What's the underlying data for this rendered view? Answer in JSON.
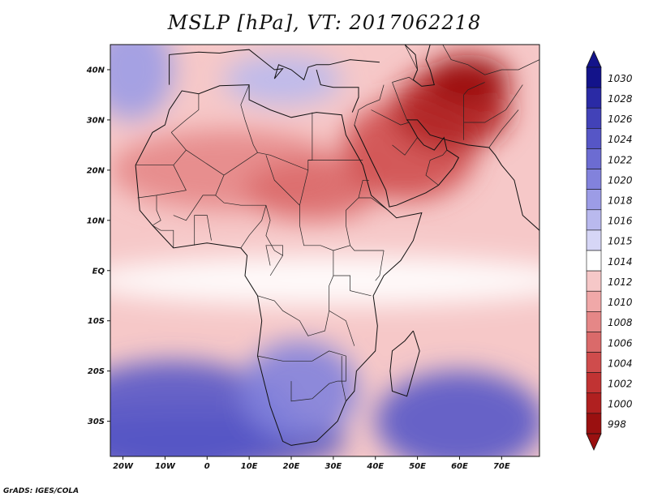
{
  "title": "MSLP [hPa], VT: 2017062218",
  "credit": "GrADS: IGES/COLA",
  "map": {
    "lon_range": [
      -23,
      79
    ],
    "lat_range": [
      -37,
      45
    ],
    "x_ticks": [
      {
        "lon": -20,
        "label": "20W"
      },
      {
        "lon": -10,
        "label": "10W"
      },
      {
        "lon": 0,
        "label": "0"
      },
      {
        "lon": 10,
        "label": "10E"
      },
      {
        "lon": 20,
        "label": "20E"
      },
      {
        "lon": 30,
        "label": "30E"
      },
      {
        "lon": 40,
        "label": "40E"
      },
      {
        "lon": 50,
        "label": "50E"
      },
      {
        "lon": 60,
        "label": "60E"
      },
      {
        "lon": 70,
        "label": "70E"
      }
    ],
    "y_ticks": [
      {
        "lat": 40,
        "label": "40N"
      },
      {
        "lat": 30,
        "label": "30N"
      },
      {
        "lat": 20,
        "label": "20N"
      },
      {
        "lat": 10,
        "label": "10N"
      },
      {
        "lat": 0,
        "label": "EQ"
      },
      {
        "lat": -10,
        "label": "10S"
      },
      {
        "lat": -20,
        "label": "20S"
      },
      {
        "lat": -30,
        "label": "30S"
      }
    ],
    "field_regions": [
      {
        "name": "southern-ocean-high",
        "value": 1026,
        "center": [
          -5,
          -34
        ],
        "radius": [
          38,
          6
        ]
      },
      {
        "name": "south-atlantic-high",
        "value": 1024,
        "center": [
          -8,
          -30
        ],
        "radius": [
          28,
          12
        ]
      },
      {
        "name": "south-indian-high",
        "value": 1024,
        "center": [
          60,
          -30
        ],
        "radius": [
          20,
          10
        ]
      },
      {
        "name": "southern-africa-high",
        "value": 1020,
        "center": [
          22,
          -24
        ],
        "radius": [
          14,
          10
        ]
      },
      {
        "name": "azores-ridge",
        "value": 1018,
        "center": [
          -18,
          40
        ],
        "radius": [
          10,
          10
        ]
      },
      {
        "name": "mediterranean-ridge",
        "value": 1016,
        "center": [
          18,
          38
        ],
        "radius": [
          14,
          5
        ]
      },
      {
        "name": "equatorial-band",
        "value": 1013,
        "center": [
          30,
          -2
        ],
        "radius": [
          60,
          5
        ]
      },
      {
        "name": "sahara-low",
        "value": 1008,
        "center": [
          5,
          20
        ],
        "radius": [
          28,
          8
        ]
      },
      {
        "name": "sudan-low",
        "value": 1006,
        "center": [
          25,
          16
        ],
        "radius": [
          16,
          6
        ]
      },
      {
        "name": "arabian-low",
        "value": 1004,
        "center": [
          48,
          24
        ],
        "radius": [
          16,
          10
        ]
      },
      {
        "name": "persian-gulf-low",
        "value": 1000,
        "center": [
          58,
          32
        ],
        "radius": [
          14,
          8
        ]
      },
      {
        "name": "central-asia-low",
        "value": 998,
        "center": [
          62,
          38
        ],
        "radius": [
          10,
          5
        ]
      }
    ],
    "coastlines": {
      "africa": [
        [
          -17,
          21
        ],
        [
          -16,
          12
        ],
        [
          -13,
          9
        ],
        [
          -8,
          4.5
        ],
        [
          0,
          5.5
        ],
        [
          8,
          4.5
        ],
        [
          9.5,
          3
        ],
        [
          9,
          -1
        ],
        [
          12,
          -5
        ],
        [
          13,
          -10
        ],
        [
          12,
          -17
        ],
        [
          15,
          -27
        ],
        [
          18,
          -34
        ],
        [
          20,
          -34.8
        ],
        [
          26,
          -34
        ],
        [
          31,
          -30
        ],
        [
          33,
          -26
        ],
        [
          35,
          -24
        ],
        [
          35.5,
          -20
        ],
        [
          40,
          -16
        ],
        [
          40.5,
          -11
        ],
        [
          39.5,
          -5
        ],
        [
          42,
          -1
        ],
        [
          46,
          2
        ],
        [
          49,
          6
        ],
        [
          51,
          11.5
        ],
        [
          45,
          10.5
        ],
        [
          43,
          12
        ],
        [
          39,
          15
        ],
        [
          37,
          21
        ],
        [
          33,
          27
        ],
        [
          32,
          31
        ],
        [
          26,
          31.5
        ],
        [
          20,
          30.5
        ],
        [
          15,
          32
        ],
        [
          10,
          34
        ],
        [
          10,
          37
        ],
        [
          3,
          36.8
        ],
        [
          -2,
          35.2
        ],
        [
          -6,
          35.8
        ],
        [
          -9,
          32
        ],
        [
          -10,
          29
        ],
        [
          -13,
          27.5
        ],
        [
          -17,
          21
        ]
      ],
      "madagascar": [
        [
          49,
          -12
        ],
        [
          50.5,
          -16
        ],
        [
          47.5,
          -25
        ],
        [
          44,
          -24
        ],
        [
          43.5,
          -20
        ],
        [
          44,
          -16
        ],
        [
          47,
          -14
        ],
        [
          49,
          -12
        ]
      ],
      "arabia": [
        [
          35,
          29
        ],
        [
          39,
          22
        ],
        [
          42.5,
          16
        ],
        [
          43.3,
          12.7
        ],
        [
          45,
          13
        ],
        [
          52,
          15.5
        ],
        [
          55,
          17
        ],
        [
          58.5,
          20.5
        ],
        [
          59.8,
          22.5
        ],
        [
          57,
          24
        ],
        [
          56.3,
          26.5
        ],
        [
          54,
          24
        ],
        [
          51.5,
          25
        ],
        [
          50,
          26.5
        ],
        [
          48,
          29.5
        ],
        [
          47.5,
          30
        ],
        [
          50,
          30
        ],
        [
          53,
          27
        ],
        [
          57,
          26
        ],
        [
          62,
          25
        ],
        [
          67,
          24.5
        ],
        [
          68.5,
          23
        ],
        [
          70,
          21
        ],
        [
          73,
          18
        ],
        [
          75,
          11
        ],
        [
          79,
          8
        ]
      ],
      "europe": [
        [
          -9,
          37
        ],
        [
          -9,
          43
        ],
        [
          -2,
          43.5
        ],
        [
          3,
          43.3
        ],
        [
          7,
          43.8
        ],
        [
          10,
          44
        ],
        [
          13,
          42
        ],
        [
          16,
          40
        ],
        [
          18,
          40.2
        ],
        [
          16,
          38.2
        ],
        [
          17,
          41
        ],
        [
          20,
          40
        ],
        [
          23,
          38
        ],
        [
          24,
          40.5
        ],
        [
          26,
          41
        ],
        [
          29,
          41
        ],
        [
          34,
          42
        ],
        [
          41,
          41.5
        ]
      ],
      "turkey_levant": [
        [
          26,
          40
        ],
        [
          27,
          37
        ],
        [
          30,
          36.5
        ],
        [
          36,
          36.5
        ],
        [
          36,
          34.5
        ],
        [
          35,
          32.5
        ],
        [
          34.5,
          31.5
        ]
      ],
      "caspian": [
        [
          47,
          45
        ],
        [
          49.5,
          43
        ],
        [
          50,
          40
        ],
        [
          49,
          38
        ],
        [
          51,
          36.7
        ],
        [
          54,
          37
        ],
        [
          53,
          40
        ],
        [
          52,
          42
        ],
        [
          53,
          45
        ]
      ]
    },
    "borders": [
      [
        [
          -17,
          21
        ],
        [
          -8,
          21
        ],
        [
          -5,
          24
        ],
        [
          -8.5,
          27.5
        ]
      ],
      [
        [
          -8,
          21
        ],
        [
          -5,
          16
        ],
        [
          -12,
          15
        ],
        [
          -16.5,
          14.5
        ]
      ],
      [
        [
          -5,
          24
        ],
        [
          4,
          19
        ],
        [
          12,
          23.5
        ],
        [
          15,
          23
        ],
        [
          24,
          20
        ],
        [
          24,
          22
        ],
        [
          25,
          22
        ],
        [
          25,
          31.5
        ]
      ],
      [
        [
          4,
          19
        ],
        [
          2,
          15
        ],
        [
          -1,
          15
        ],
        [
          -5,
          10
        ],
        [
          -8,
          11
        ]
      ],
      [
        [
          2,
          15
        ],
        [
          4,
          13.5
        ],
        [
          8,
          13
        ],
        [
          14,
          13
        ]
      ],
      [
        [
          14,
          13
        ],
        [
          15,
          10
        ],
        [
          14,
          7
        ],
        [
          16,
          4
        ],
        [
          18,
          3
        ]
      ],
      [
        [
          24,
          20
        ],
        [
          22,
          13
        ],
        [
          22,
          9
        ],
        [
          23,
          5
        ],
        [
          27,
          5
        ],
        [
          30,
          4
        ],
        [
          34,
          5
        ],
        [
          35,
          4
        ],
        [
          42,
          4
        ]
      ],
      [
        [
          14,
          23
        ],
        [
          16,
          18
        ],
        [
          22,
          13
        ]
      ],
      [
        [
          24,
          22
        ],
        [
          37,
          22
        ]
      ],
      [
        [
          34,
          5
        ],
        [
          33,
          9
        ],
        [
          33,
          12
        ],
        [
          36,
          14.5
        ],
        [
          37,
          18
        ],
        [
          38.5,
          18
        ]
      ],
      [
        [
          36,
          14.5
        ],
        [
          39,
          14.5
        ],
        [
          43,
          12
        ]
      ],
      [
        [
          42,
          4
        ],
        [
          41,
          -1
        ],
        [
          40,
          -2
        ]
      ],
      [
        [
          30,
          4
        ],
        [
          30,
          -1
        ],
        [
          29,
          -3
        ],
        [
          29,
          -8
        ],
        [
          31,
          -9
        ],
        [
          33,
          -10
        ],
        [
          35,
          -15
        ]
      ],
      [
        [
          30,
          -1
        ],
        [
          34,
          -1
        ],
        [
          34,
          -4
        ],
        [
          39,
          -5
        ]
      ],
      [
        [
          12,
          -5
        ],
        [
          16,
          -6
        ],
        [
          18,
          -8
        ],
        [
          22,
          -10
        ],
        [
          24,
          -13
        ],
        [
          28,
          -12
        ],
        [
          29,
          -8
        ]
      ],
      [
        [
          12,
          -17
        ],
        [
          18,
          -18
        ],
        [
          23,
          -18
        ],
        [
          25,
          -18
        ],
        [
          29,
          -16
        ],
        [
          33,
          -17
        ],
        [
          33,
          -22
        ],
        [
          31,
          -22
        ]
      ],
      [
        [
          20,
          -22
        ],
        [
          20,
          -26
        ],
        [
          25,
          -25.5
        ],
        [
          29,
          -22.5
        ],
        [
          31,
          -22
        ]
      ],
      [
        [
          33,
          -26
        ],
        [
          32,
          -22
        ],
        [
          32,
          -17
        ]
      ],
      [
        [
          15,
          -1
        ],
        [
          18,
          3
        ],
        [
          18,
          5
        ],
        [
          14,
          5
        ],
        [
          15,
          1
        ]
      ],
      [
        [
          8,
          4.5
        ],
        [
          10,
          7
        ],
        [
          13,
          10
        ],
        [
          14,
          13
        ]
      ],
      [
        [
          -3,
          5
        ],
        [
          -3,
          11
        ],
        [
          0,
          11
        ],
        [
          1,
          6
        ]
      ],
      [
        [
          -13,
          9
        ],
        [
          -11,
          8
        ],
        [
          -8,
          8
        ],
        [
          -8,
          4.5
        ]
      ],
      [
        [
          -12,
          15
        ],
        [
          -12,
          12
        ],
        [
          -11,
          10
        ],
        [
          -13,
          9
        ]
      ],
      [
        [
          10,
          37
        ],
        [
          8,
          33
        ],
        [
          9,
          30
        ],
        [
          11,
          25
        ],
        [
          12,
          23.5
        ]
      ],
      [
        [
          -2,
          35.2
        ],
        [
          -2,
          32
        ],
        [
          -5,
          30
        ],
        [
          -8.5,
          27.5
        ]
      ],
      [
        [
          35,
          29
        ],
        [
          36,
          32
        ],
        [
          38,
          33
        ],
        [
          41,
          34
        ],
        [
          42,
          37
        ]
      ],
      [
        [
          39,
          32
        ],
        [
          46,
          29
        ],
        [
          48,
          29.5
        ]
      ],
      [
        [
          44,
          37.5
        ],
        [
          46,
          33
        ],
        [
          47.5,
          30
        ]
      ],
      [
        [
          44,
          37.5
        ],
        [
          48,
          38.5
        ],
        [
          51,
          36.7
        ]
      ],
      [
        [
          55,
          17
        ],
        [
          52,
          19
        ],
        [
          53,
          22
        ],
        [
          56,
          23
        ],
        [
          57,
          24
        ]
      ],
      [
        [
          44,
          25
        ],
        [
          47,
          23
        ],
        [
          50,
          26.5
        ]
      ],
      [
        [
          61,
          26
        ],
        [
          61,
          31
        ],
        [
          61,
          35
        ],
        [
          62,
          36
        ],
        [
          66,
          37.5
        ]
      ],
      [
        [
          61,
          29.5
        ],
        [
          66,
          29.5
        ],
        [
          71,
          32
        ],
        [
          75,
          37
        ]
      ],
      [
        [
          67,
          24.5
        ],
        [
          70,
          28
        ],
        [
          74,
          32
        ]
      ],
      [
        [
          47,
          45
        ],
        [
          50,
          40
        ]
      ],
      [
        [
          56,
          45
        ],
        [
          58,
          42
        ],
        [
          62,
          41
        ],
        [
          66,
          39
        ],
        [
          70,
          40
        ],
        [
          74,
          40
        ],
        [
          79,
          42
        ]
      ]
    ]
  },
  "colorbar": {
    "levels": [
      "1030",
      "1028",
      "1026",
      "1024",
      "1022",
      "1020",
      "1018",
      "1016",
      "1015",
      "1014",
      "1012",
      "1010",
      "1008",
      "1006",
      "1004",
      "1002",
      "1000",
      "998"
    ],
    "colors": [
      "#13138a",
      "#2a2aa5",
      "#4242b8",
      "#5656c6",
      "#6c6cd2",
      "#8282dc",
      "#9c9ce6",
      "#b9b9ee",
      "#d6d6f6",
      "#ffffff",
      "#f6c8c8",
      "#f0a8a8",
      "#e58787",
      "#da6a6a",
      "#cf4c4c",
      "#c13333",
      "#b02020",
      "#9a1010"
    ]
  }
}
